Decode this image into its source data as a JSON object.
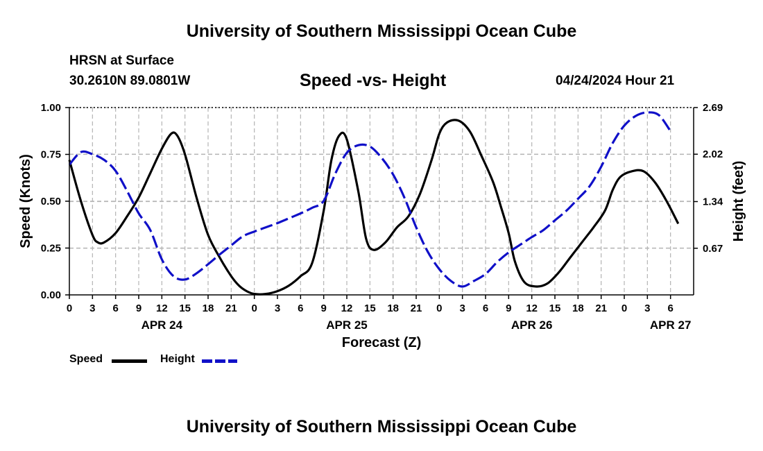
{
  "header": {
    "title": "University of Southern Mississippi Ocean Cube",
    "station": "HRSN at Surface",
    "coords": "30.2610N  89.0801W",
    "datetime": "04/24/2024 Hour 21"
  },
  "footer": {
    "title": "University of Southern Mississippi Ocean Cube"
  },
  "legend": {
    "speed_label": "Speed",
    "height_label": "Height"
  },
  "colors": {
    "speed": "#000000",
    "height": "#1010c8",
    "grid": "#b4b4b4"
  },
  "chart_data": {
    "type": "line",
    "title": "Speed -vs- Height",
    "xlabel": "Forecast (Z)",
    "ylabel": "Speed (Knots)",
    "y2label": "Height (feet)",
    "x_hours_range": [
      0,
      81
    ],
    "ylim": [
      0,
      1
    ],
    "y2lim": [
      0,
      2.69
    ],
    "x_ticks": [
      {
        "hour": 0,
        "label": "0"
      },
      {
        "hour": 3,
        "label": "3"
      },
      {
        "hour": 6,
        "label": "6"
      },
      {
        "hour": 9,
        "label": "9"
      },
      {
        "hour": 12,
        "label": "12"
      },
      {
        "hour": 15,
        "label": "15"
      },
      {
        "hour": 18,
        "label": "18"
      },
      {
        "hour": 21,
        "label": "21"
      },
      {
        "hour": 24,
        "label": "0"
      },
      {
        "hour": 27,
        "label": "3"
      },
      {
        "hour": 30,
        "label": "6"
      },
      {
        "hour": 33,
        "label": "9"
      },
      {
        "hour": 36,
        "label": "12"
      },
      {
        "hour": 39,
        "label": "15"
      },
      {
        "hour": 42,
        "label": "18"
      },
      {
        "hour": 45,
        "label": "21"
      },
      {
        "hour": 48,
        "label": "0"
      },
      {
        "hour": 51,
        "label": "3"
      },
      {
        "hour": 54,
        "label": "6"
      },
      {
        "hour": 57,
        "label": "9"
      },
      {
        "hour": 60,
        "label": "12"
      },
      {
        "hour": 63,
        "label": "15"
      },
      {
        "hour": 66,
        "label": "18"
      },
      {
        "hour": 69,
        "label": "21"
      },
      {
        "hour": 72,
        "label": "0"
      },
      {
        "hour": 75,
        "label": "3"
      },
      {
        "hour": 78,
        "label": "6"
      }
    ],
    "date_labels": [
      {
        "hour": 12,
        "label": "APR 24"
      },
      {
        "hour": 36,
        "label": "APR 25"
      },
      {
        "hour": 60,
        "label": "APR 26"
      },
      {
        "hour": 78,
        "label": "APR 27"
      }
    ],
    "y_ticks": [
      {
        "value": 0,
        "label": "0.00"
      },
      {
        "value": 0.25,
        "label": "0.25"
      },
      {
        "value": 0.5,
        "label": "0.50"
      },
      {
        "value": 0.75,
        "label": "0.75"
      },
      {
        "value": 1,
        "label": "1.00"
      }
    ],
    "y2_ticks": [
      {
        "value": 0.67,
        "label": "0.67"
      },
      {
        "value": 1.34,
        "label": "1.34"
      },
      {
        "value": 2.02,
        "label": "2.02"
      },
      {
        "value": 2.69,
        "label": "2.69"
      }
    ],
    "series": [
      {
        "name": "Speed",
        "axis": "left",
        "style": "solid",
        "hours": [
          0,
          1.5,
          3,
          3.7,
          4.5,
          6,
          7.5,
          9,
          10.5,
          12,
          13.2,
          14,
          15,
          16.5,
          18,
          19.5,
          21,
          22,
          23,
          24,
          25.5,
          27,
          28.5,
          30,
          31.5,
          33,
          34,
          35,
          36,
          37.5,
          38.5,
          39.5,
          41,
          42.5,
          44,
          45.5,
          47,
          48,
          49,
          50.5,
          52,
          53.5,
          55,
          56,
          57,
          57.8,
          59,
          60.5,
          62,
          63.5,
          65,
          66.5,
          68,
          69.5,
          70.5,
          71.5,
          73,
          74.5,
          76,
          77.5,
          79
        ],
        "values": [
          0.72,
          0.5,
          0.32,
          0.28,
          0.28,
          0.33,
          0.42,
          0.52,
          0.65,
          0.78,
          0.86,
          0.85,
          0.75,
          0.52,
          0.32,
          0.2,
          0.1,
          0.05,
          0.02,
          0.005,
          0.005,
          0.02,
          0.05,
          0.1,
          0.17,
          0.45,
          0.72,
          0.85,
          0.83,
          0.55,
          0.3,
          0.24,
          0.28,
          0.36,
          0.42,
          0.54,
          0.72,
          0.86,
          0.92,
          0.93,
          0.87,
          0.74,
          0.6,
          0.47,
          0.33,
          0.18,
          0.07,
          0.045,
          0.06,
          0.12,
          0.2,
          0.28,
          0.36,
          0.45,
          0.56,
          0.63,
          0.66,
          0.66,
          0.6,
          0.5,
          0.38
        ]
      },
      {
        "name": "Height",
        "axis": "right",
        "style": "dashed",
        "hours": [
          0,
          1.5,
          3,
          4.5,
          6,
          7.5,
          9,
          10.5,
          12,
          13.5,
          15,
          16.5,
          18,
          19.5,
          21,
          22.5,
          24,
          25.5,
          27,
          28.5,
          30,
          31.5,
          33,
          34.5,
          36,
          37.5,
          39,
          40.5,
          42,
          43.5,
          45,
          46.5,
          48,
          49.5,
          51,
          52.5,
          54,
          55.5,
          57,
          58.5,
          60,
          61.5,
          63,
          64.5,
          66,
          67.5,
          69,
          70.5,
          72,
          73.5,
          75,
          76.5,
          78
        ],
        "values": [
          1.87,
          2.05,
          2.02,
          1.94,
          1.78,
          1.49,
          1.17,
          0.93,
          0.51,
          0.27,
          0.22,
          0.31,
          0.44,
          0.58,
          0.71,
          0.84,
          0.91,
          0.97,
          1.03,
          1.1,
          1.17,
          1.25,
          1.35,
          1.74,
          2.04,
          2.15,
          2.13,
          1.97,
          1.73,
          1.39,
          0.97,
          0.62,
          0.37,
          0.2,
          0.12,
          0.2,
          0.3,
          0.47,
          0.61,
          0.72,
          0.83,
          0.93,
          1.07,
          1.21,
          1.38,
          1.56,
          1.84,
          2.18,
          2.43,
          2.57,
          2.62,
          2.58,
          2.35
        ]
      }
    ]
  }
}
